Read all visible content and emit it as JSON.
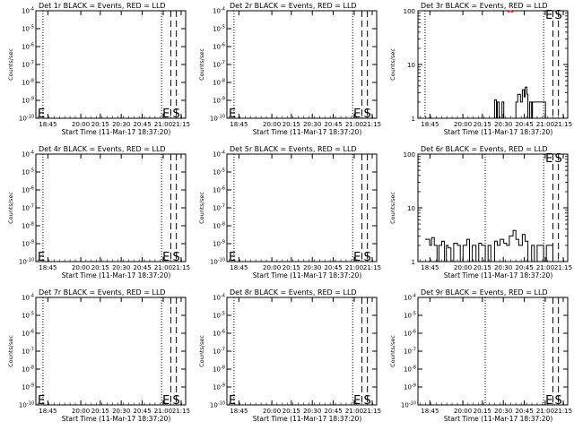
{
  "figure": {
    "xlabel": "Start Time (11-Mar-17 18:37:20)",
    "ylabel": "Counts/sec",
    "legend_title_suffix": "BLACK = Events, RED = LLD",
    "markers": {
      "e_label": "E",
      "s_label": "S"
    },
    "colors": {
      "events": "#000000",
      "lld": "#ff0000"
    }
  },
  "chart_data": [
    {
      "type": "line",
      "title": "Det 1r BLACK = Events, RED = LLD",
      "xlim": [
        "18:37:20",
        "21:19:00"
      ],
      "yscale": "log",
      "ylim": [
        1e-10,
        0.0001
      ],
      "xticks": [
        "18:45",
        "20:00",
        "20:15",
        "20:30",
        "20:45",
        "21:00",
        "21:15"
      ],
      "yticks": [
        "10^-10",
        "10^-9",
        "10^-8",
        "10^-7",
        "10^-6",
        "10^-5",
        "10^-4"
      ],
      "dotted_lines": [
        "18:45",
        "20:53"
      ],
      "dashed_lines": [
        "21:03",
        "21:09"
      ],
      "marker_text": [
        "E",
        "E",
        "S"
      ],
      "series": []
    },
    {
      "type": "line",
      "title": "Det 2r BLACK = Events, RED = LLD",
      "xlim": [
        "18:37:20",
        "21:19:00"
      ],
      "yscale": "log",
      "ylim": [
        1e-10,
        0.0001
      ],
      "xticks": [
        "18:45",
        "20:00",
        "20:15",
        "20:30",
        "20:45",
        "21:00",
        "21:15"
      ],
      "yticks": [
        "10^-10",
        "10^-9",
        "10^-8",
        "10^-7",
        "10^-6",
        "10^-5",
        "10^-4"
      ],
      "dotted_lines": [
        "18:45",
        "20:53"
      ],
      "dashed_lines": [
        "21:03",
        "21:09"
      ],
      "marker_text": [
        "E",
        "E",
        "S"
      ],
      "series": []
    },
    {
      "type": "line",
      "title": "Det 3r BLACK = Events, RED = LLD",
      "xlim": [
        "18:37:20",
        "21:19:00"
      ],
      "yscale": "log",
      "ylim": [
        1,
        100
      ],
      "xticks": [
        "18:45",
        "20:00",
        "20:15",
        "20:30",
        "20:45",
        "21:00",
        "21:15"
      ],
      "yticks": [
        "1",
        "10",
        "100"
      ],
      "dotted_lines": [
        "18:45",
        "20:53"
      ],
      "dashed_lines": [
        "21:03",
        "21:09"
      ],
      "marker_text": [
        "E",
        "S"
      ],
      "series": [
        {
          "color": "#000000",
          "x": [
            "19:58",
            "20:00",
            "20:02",
            "20:03",
            "20:05",
            "20:08",
            "20:10",
            "20:20",
            "20:23",
            "20:25",
            "20:28",
            "20:30",
            "20:32",
            "20:33",
            "20:35",
            "20:36",
            "20:38",
            "20:40",
            "20:41",
            "20:55"
          ],
          "y": [
            1,
            2.2,
            1,
            2,
            1,
            2,
            1,
            1,
            2,
            2.8,
            2,
            3.4,
            2.5,
            3.8,
            2.8,
            1,
            2,
            1,
            2,
            1
          ]
        },
        {
          "color": "#ff0000",
          "x": [
            "20:14",
            "20:16",
            "20:18",
            "20:20"
          ],
          "y": [
            95,
            100,
            95,
            100
          ]
        }
      ]
    },
    {
      "type": "line",
      "title": "Det 4r BLACK = Events, RED = LLD",
      "xlim": [
        "18:37:20",
        "21:19:00"
      ],
      "yscale": "log",
      "ylim": [
        1e-10,
        0.0001
      ],
      "xticks": [
        "18:45",
        "20:00",
        "20:15",
        "20:30",
        "20:45",
        "21:00",
        "21:15"
      ],
      "yticks": [
        "10^-10",
        "10^-9",
        "10^-8",
        "10^-7",
        "10^-6",
        "10^-5",
        "10^-4"
      ],
      "dotted_lines": [
        "18:45",
        "20:53"
      ],
      "dashed_lines": [
        "21:03",
        "21:09"
      ],
      "marker_text": [
        "E",
        "E",
        "S"
      ],
      "series": []
    },
    {
      "type": "line",
      "title": "Det 5r BLACK = Events, RED = LLD",
      "xlim": [
        "18:37:20",
        "21:19:00"
      ],
      "yscale": "log",
      "ylim": [
        1e-10,
        0.0001
      ],
      "xticks": [
        "18:45",
        "20:00",
        "20:15",
        "20:30",
        "20:45",
        "21:00",
        "21:15"
      ],
      "yticks": [
        "10^-10",
        "10^-9",
        "10^-8",
        "10^-7",
        "10^-6",
        "10^-5",
        "10^-4"
      ],
      "dotted_lines": [
        "18:45",
        "20:53"
      ],
      "dashed_lines": [
        "21:03",
        "21:09"
      ],
      "marker_text": [
        "E",
        "E",
        "S"
      ],
      "series": []
    },
    {
      "type": "line",
      "title": "Det 6r BLACK = Events, RED = LLD",
      "xlim": [
        "18:37:20",
        "21:19:00"
      ],
      "yscale": "log",
      "ylim": [
        1,
        100
      ],
      "xticks": [
        "18:45",
        "20:00",
        "20:15",
        "20:30",
        "20:45",
        "21:00",
        "21:15"
      ],
      "yticks": [
        "1",
        "10",
        "100"
      ],
      "dotted_lines": [
        "19:50",
        "20:53"
      ],
      "dashed_lines": [
        "21:03",
        "21:09"
      ],
      "marker_text": [
        "E",
        "S"
      ],
      "series": [
        {
          "color": "#000000",
          "x": [
            "18:45",
            "18:50",
            "18:52",
            "18:55",
            "18:58",
            "19:00",
            "19:03",
            "19:06",
            "19:08",
            "19:10",
            "19:13",
            "19:16",
            "19:20",
            "19:23",
            "19:26",
            "19:30",
            "19:33",
            "19:36",
            "19:40",
            "19:43",
            "19:46",
            "19:50",
            "19:53",
            "19:56",
            "20:00",
            "20:03",
            "20:06",
            "20:10",
            "20:13",
            "20:16",
            "20:20",
            "20:23",
            "20:26",
            "20:30",
            "20:33",
            "20:36",
            "20:40",
            "20:43",
            "20:46",
            "20:50",
            "20:53",
            "20:56",
            "21:00",
            "21:03"
          ],
          "y": [
            2.6,
            2,
            2.8,
            2,
            1,
            2,
            2.4,
            1,
            2,
            1.8,
            1,
            2.2,
            2,
            1,
            2,
            2.6,
            1,
            2,
            1,
            2.2,
            2,
            1,
            2,
            1,
            2.4,
            2,
            2.6,
            2.2,
            2,
            3,
            3.8,
            2.6,
            2,
            3.2,
            2.4,
            1,
            2,
            1,
            2,
            2,
            1,
            2,
            2,
            1
          ]
        }
      ]
    },
    {
      "type": "line",
      "title": "Det 7r BLACK = Events, RED = LLD",
      "xlim": [
        "18:37:20",
        "21:19:00"
      ],
      "yscale": "log",
      "ylim": [
        1e-10,
        0.0001
      ],
      "xticks": [
        "18:45",
        "20:00",
        "20:15",
        "20:30",
        "20:45",
        "21:00",
        "21:15"
      ],
      "yticks": [
        "10^-10",
        "10^-9",
        "10^-8",
        "10^-7",
        "10^-6",
        "10^-5",
        "10^-4"
      ],
      "dotted_lines": [
        "18:45",
        "20:53"
      ],
      "dashed_lines": [
        "21:03",
        "21:09"
      ],
      "marker_text": [
        "E",
        "E",
        "S"
      ],
      "series": []
    },
    {
      "type": "line",
      "title": "Det 8r BLACK = Events, RED = LLD",
      "xlim": [
        "18:37:20",
        "21:19:00"
      ],
      "yscale": "log",
      "ylim": [
        1e-10,
        0.0001
      ],
      "xticks": [
        "18:45",
        "20:00",
        "20:15",
        "20:30",
        "20:45",
        "21:00",
        "21:15"
      ],
      "yticks": [
        "10^-10",
        "10^-9",
        "10^-8",
        "10^-7",
        "10^-6",
        "10^-5",
        "10^-4"
      ],
      "dotted_lines": [
        "18:45",
        "20:53"
      ],
      "dashed_lines": [
        "21:03",
        "21:09"
      ],
      "marker_text": [
        "E",
        "E",
        "S"
      ],
      "series": []
    },
    {
      "type": "line",
      "title": "Det 9r BLACK = Events, RED = LLD",
      "xlim": [
        "18:37:20",
        "21:19:00"
      ],
      "yscale": "log",
      "ylim": [
        1e-10,
        0.0001
      ],
      "xticks": [
        "18:45",
        "20:00",
        "20:15",
        "20:30",
        "20:45",
        "21:00",
        "21:15"
      ],
      "yticks": [
        "10^-10",
        "10^-9",
        "10^-8",
        "10^-7",
        "10^-6",
        "10^-5",
        "10^-4"
      ],
      "dotted_lines": [
        "19:50",
        "20:53"
      ],
      "dashed_lines": [
        "21:03",
        "21:09"
      ],
      "marker_text": [
        "E",
        "S"
      ],
      "series": []
    }
  ]
}
